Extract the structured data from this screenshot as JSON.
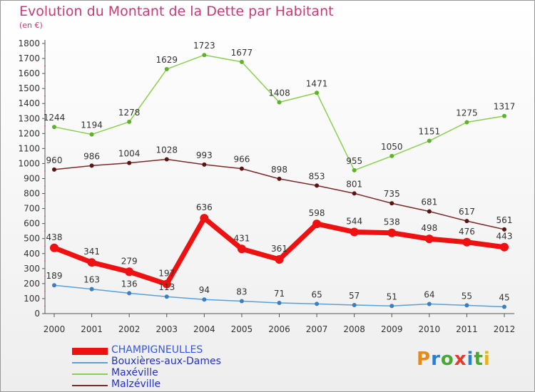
{
  "title": "Evolution du Montant de la Dette par Habitant",
  "unit": "(en €)",
  "logo": "Proxiti",
  "chart_data": {
    "type": "line",
    "x": [
      "2000",
      "2001",
      "2002",
      "2003",
      "2004",
      "2005",
      "2006",
      "2007",
      "2008",
      "2009",
      "2010",
      "2011",
      "2012"
    ],
    "ylim": [
      0,
      1800
    ],
    "yticks": [
      0,
      100,
      200,
      300,
      400,
      500,
      600,
      700,
      800,
      900,
      1000,
      1100,
      1200,
      1300,
      1400,
      1500,
      1600,
      1700,
      1800
    ],
    "grid": false,
    "legend": "bottom-left",
    "series": [
      {
        "name": "CHAMPIGNEULLES",
        "color": "#ee1111",
        "values": [
          438,
          341,
          279,
          197,
          636,
          431,
          361,
          598,
          544,
          538,
          498,
          476,
          443
        ]
      },
      {
        "name": "Bouxières-aux-Dames",
        "color": "#5aa0d8",
        "values": [
          189,
          163,
          136,
          113,
          94,
          83,
          71,
          65,
          57,
          51,
          64,
          55,
          45
        ]
      },
      {
        "name": "Maxéville",
        "color": "#8ad04e",
        "values": [
          1244,
          1194,
          1278,
          1629,
          1723,
          1677,
          1408,
          1471,
          955,
          1050,
          1151,
          1275,
          1317
        ]
      },
      {
        "name": "Malzéville",
        "color": "#7a2a2a",
        "values": [
          960,
          986,
          1004,
          1028,
          993,
          966,
          898,
          853,
          801,
          735,
          681,
          617,
          561
        ]
      }
    ]
  }
}
